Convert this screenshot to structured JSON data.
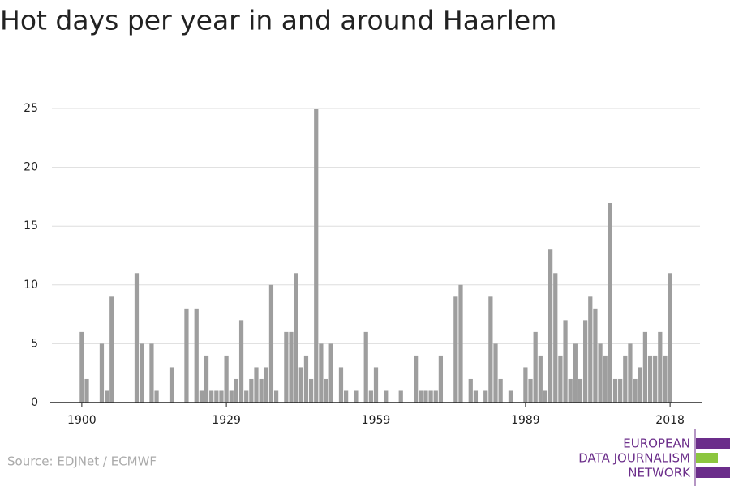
{
  "chart_data": {
    "type": "bar",
    "title": "Hot days per year in and around Haarlem",
    "x": [
      1900,
      1901,
      1902,
      1903,
      1904,
      1905,
      1906,
      1907,
      1908,
      1909,
      1910,
      1911,
      1912,
      1913,
      1914,
      1915,
      1916,
      1917,
      1918,
      1919,
      1920,
      1921,
      1922,
      1923,
      1924,
      1925,
      1926,
      1927,
      1928,
      1929,
      1930,
      1931,
      1932,
      1933,
      1934,
      1935,
      1936,
      1937,
      1938,
      1939,
      1940,
      1941,
      1942,
      1943,
      1944,
      1945,
      1946,
      1947,
      1948,
      1949,
      1950,
      1951,
      1952,
      1953,
      1954,
      1955,
      1956,
      1957,
      1958,
      1959,
      1960,
      1961,
      1962,
      1963,
      1964,
      1965,
      1966,
      1967,
      1968,
      1969,
      1970,
      1971,
      1972,
      1973,
      1974,
      1975,
      1976,
      1977,
      1978,
      1979,
      1980,
      1981,
      1982,
      1983,
      1984,
      1985,
      1986,
      1987,
      1988,
      1989,
      1990,
      1991,
      1992,
      1993,
      1994,
      1995,
      1996,
      1997,
      1998,
      1999,
      2000,
      2001,
      2002,
      2003,
      2004,
      2005,
      2006,
      2007,
      2008,
      2009,
      2010,
      2011,
      2012,
      2013,
      2014,
      2015,
      2016,
      2017,
      2018
    ],
    "values": [
      6,
      2,
      0,
      0,
      5,
      1,
      9,
      0,
      0,
      0,
      0,
      11,
      5,
      0,
      5,
      1,
      0,
      0,
      3,
      0,
      0,
      8,
      0,
      8,
      1,
      4,
      1,
      1,
      1,
      4,
      1,
      2,
      7,
      1,
      2,
      3,
      2,
      3,
      10,
      1,
      0,
      6,
      6,
      11,
      3,
      4,
      2,
      25,
      5,
      2,
      5,
      0,
      3,
      1,
      0,
      1,
      0,
      6,
      1,
      3,
      0,
      1,
      0,
      0,
      1,
      0,
      0,
      4,
      1,
      1,
      1,
      1,
      4,
      0,
      0,
      9,
      10,
      0,
      2,
      1,
      0,
      1,
      9,
      5,
      2,
      0,
      1,
      0,
      0,
      3,
      2,
      6,
      4,
      1,
      13,
      11,
      4,
      7,
      2,
      5,
      2,
      7,
      9,
      8,
      5,
      4,
      17,
      2,
      2,
      4,
      5,
      2,
      3,
      6,
      4,
      4,
      6,
      4,
      11
    ],
    "color": "#9e9e9e",
    "xlim": [
      1894,
      2024
    ],
    "xticks": [
      1900,
      1929,
      1959,
      1989,
      2018
    ],
    "ylim": [
      0,
      25
    ],
    "yticks": [
      0,
      5,
      10,
      15,
      20,
      25
    ],
    "grid": true,
    "source": "Source: EDJNet / ECMWF",
    "logo": [
      "EUROPEAN",
      "DATA JOURNALISM",
      "NETWORK"
    ]
  }
}
